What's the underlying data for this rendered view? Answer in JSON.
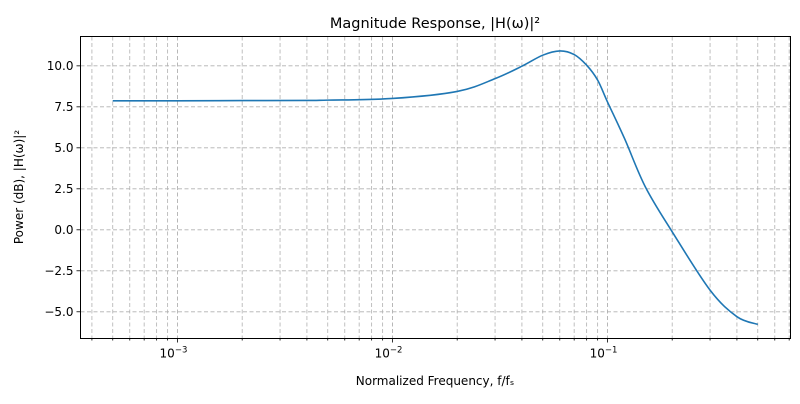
{
  "chart_data": {
    "type": "line",
    "title": "Magnitude Response, |H(ω)|²",
    "xlabel": "Normalized Frequency, f/fₛ",
    "ylabel": "Power (dB), |H(ω)|²",
    "xscale": "log",
    "xlim": [
      0.000354,
      0.71
    ],
    "ylim": [
      -6.63,
      11.79
    ],
    "grid": "both (major and minor), dashed",
    "legend": "none",
    "line_color": "#1f77b4",
    "x_ticks": [
      {
        "value": 0.001,
        "base": "10",
        "exp": "−3"
      },
      {
        "value": 0.01,
        "base": "10",
        "exp": "−2"
      },
      {
        "value": 0.1,
        "base": "10",
        "exp": "−1"
      }
    ],
    "y_ticks": [
      {
        "value": 10,
        "label": "10.0"
      },
      {
        "value": 7.5,
        "label": "7.5"
      },
      {
        "value": 5,
        "label": "5.0"
      },
      {
        "value": 2.5,
        "label": "2.5"
      },
      {
        "value": 0,
        "label": "0.0"
      },
      {
        "value": -2.5,
        "label": "−2.5"
      },
      {
        "value": -5,
        "label": "−5.0"
      }
    ],
    "series": [
      {
        "x": [
          0.0005,
          0.001,
          0.002,
          0.004,
          0.005,
          0.01,
          0.02,
          0.03,
          0.04,
          0.05,
          0.06,
          0.07,
          0.08,
          0.09,
          0.1,
          0.12,
          0.15,
          0.2,
          0.3,
          0.4,
          0.5
        ],
        "y": [
          7.87,
          7.87,
          7.88,
          7.89,
          7.91,
          8.01,
          8.44,
          9.22,
          9.98,
          10.65,
          10.91,
          10.69,
          10.04,
          9.13,
          7.8,
          5.57,
          2.62,
          -0.12,
          -3.68,
          -5.3,
          -5.77
        ]
      }
    ]
  }
}
